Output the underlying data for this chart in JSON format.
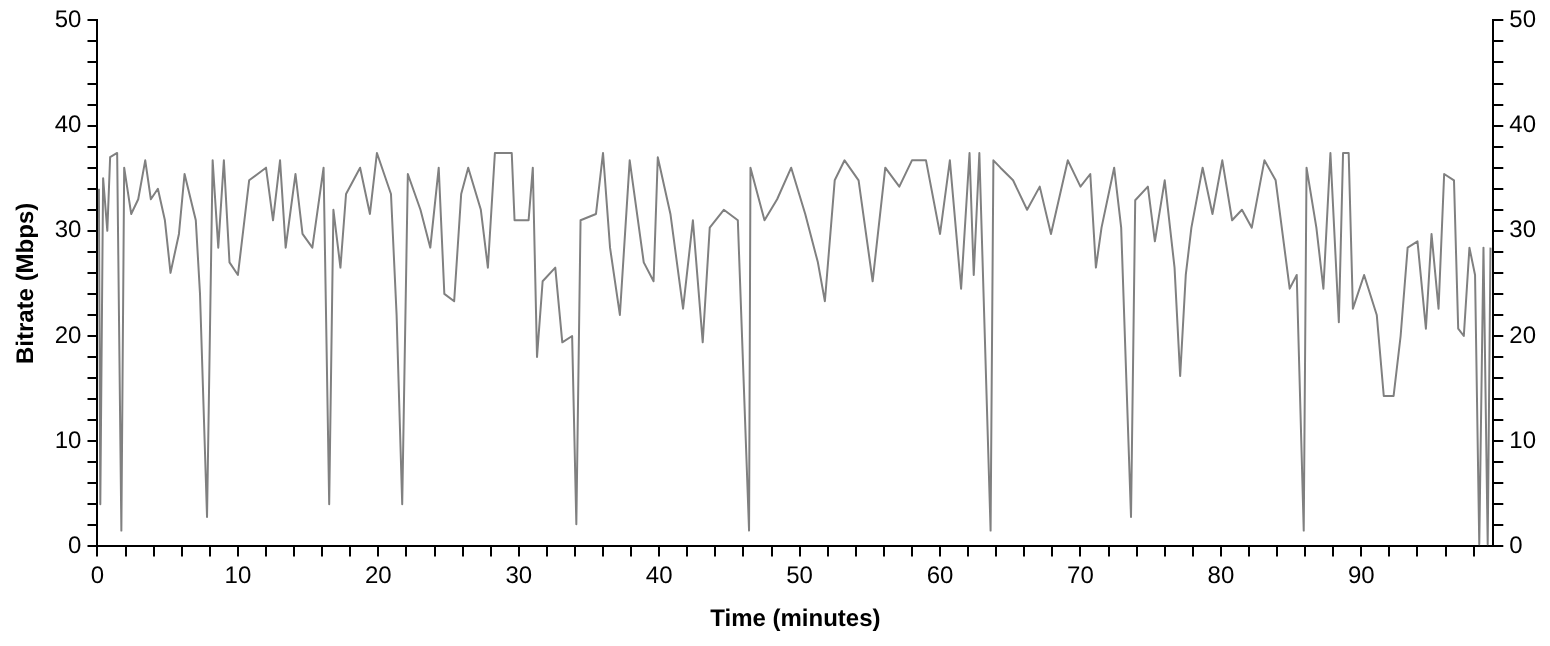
{
  "chart_data": {
    "type": "line",
    "xlabel": "Time (minutes)",
    "ylabel": "Bitrate (Mbps)",
    "xlim": [
      0,
      99.4
    ],
    "ylim": [
      0,
      50
    ],
    "y2lim": [
      0,
      50
    ],
    "xticks": [
      0,
      {
        "value": 2,
        "label": null
      },
      {
        "value": 4,
        "label": null
      },
      {
        "value": 6,
        "label": null
      },
      {
        "value": 8,
        "label": null
      },
      10,
      {
        "value": 12,
        "label": null
      },
      {
        "value": 14,
        "label": null
      },
      {
        "value": 16,
        "label": null
      },
      {
        "value": 18,
        "label": null
      },
      20,
      {
        "value": 22,
        "label": null
      },
      {
        "value": 24,
        "label": null
      },
      {
        "value": 26,
        "label": null
      },
      {
        "value": 28,
        "label": null
      },
      30,
      {
        "value": 32,
        "label": null
      },
      {
        "value": 34,
        "label": null
      },
      {
        "value": 36,
        "label": null
      },
      {
        "value": 38,
        "label": null
      },
      40,
      {
        "value": 42,
        "label": null
      },
      {
        "value": 44,
        "label": null
      },
      {
        "value": 46,
        "label": null
      },
      {
        "value": 48,
        "label": null
      },
      50,
      {
        "value": 52,
        "label": null
      },
      {
        "value": 54,
        "label": null
      },
      {
        "value": 56,
        "label": null
      },
      {
        "value": 58,
        "label": null
      },
      60,
      {
        "value": 62,
        "label": null
      },
      {
        "value": 64,
        "label": null
      },
      {
        "value": 66,
        "label": null
      },
      {
        "value": 68,
        "label": null
      },
      70,
      {
        "value": 72,
        "label": null
      },
      {
        "value": 74,
        "label": null
      },
      {
        "value": 76,
        "label": null
      },
      {
        "value": 78,
        "label": null
      },
      80,
      {
        "value": 82,
        "label": null
      },
      {
        "value": 84,
        "label": null
      },
      {
        "value": 86,
        "label": null
      },
      {
        "value": 88,
        "label": null
      },
      90,
      {
        "value": 92,
        "label": null
      },
      {
        "value": 94,
        "label": null
      },
      {
        "value": 96,
        "label": null
      },
      {
        "value": 98,
        "label": null
      }
    ],
    "yticks": [
      0,
      {
        "value": 2,
        "label": null
      },
      {
        "value": 4,
        "label": null
      },
      {
        "value": 6,
        "label": null
      },
      {
        "value": 8,
        "label": null
      },
      10,
      {
        "value": 12,
        "label": null
      },
      {
        "value": 14,
        "label": null
      },
      {
        "value": 16,
        "label": null
      },
      {
        "value": 18,
        "label": null
      },
      20,
      {
        "value": 22,
        "label": null
      },
      {
        "value": 24,
        "label": null
      },
      {
        "value": 26,
        "label": null
      },
      {
        "value": 28,
        "label": null
      },
      30,
      {
        "value": 32,
        "label": null
      },
      {
        "value": 34,
        "label": null
      },
      {
        "value": 36,
        "label": null
      },
      {
        "value": 38,
        "label": null
      },
      40,
      {
        "value": 42,
        "label": null
      },
      {
        "value": 44,
        "label": null
      },
      {
        "value": 46,
        "label": null
      },
      {
        "value": 48,
        "label": null
      },
      50
    ],
    "y2ticks": [
      0,
      {
        "value": 2,
        "label": null
      },
      {
        "value": 4,
        "label": null
      },
      {
        "value": 6,
        "label": null
      },
      {
        "value": 8,
        "label": null
      },
      10,
      {
        "value": 12,
        "label": null
      },
      {
        "value": 14,
        "label": null
      },
      {
        "value": 16,
        "label": null
      },
      {
        "value": 18,
        "label": null
      },
      20,
      {
        "value": 22,
        "label": null
      },
      {
        "value": 24,
        "label": null
      },
      {
        "value": 26,
        "label": null
      },
      {
        "value": 28,
        "label": null
      },
      30,
      {
        "value": 32,
        "label": null
      },
      {
        "value": 34,
        "label": null
      },
      {
        "value": 36,
        "label": null
      },
      {
        "value": 38,
        "label": null
      },
      40,
      {
        "value": 42,
        "label": null
      },
      {
        "value": 44,
        "label": null
      },
      {
        "value": 46,
        "label": null
      },
      {
        "value": 48,
        "label": null
      },
      50
    ],
    "grid": false,
    "legend": false,
    "marker": "none",
    "line_style": "solid",
    "series": [
      {
        "color": "#808080",
        "x": [
          0.1,
          0.2,
          0.4,
          0.7,
          0.9,
          1.4,
          1.7,
          1.9,
          2.4,
          2.9,
          3.4,
          3.8,
          4.3,
          4.8,
          5.2,
          5.8,
          6.2,
          7.0,
          7.3,
          7.8,
          8.2,
          8.6,
          9.0,
          9.4,
          10.0,
          10.8,
          12.0,
          12.5,
          13.0,
          13.4,
          14.1,
          14.6,
          15.3,
          16.1,
          16.5,
          16.8,
          17.3,
          17.7,
          18.7,
          19.4,
          19.9,
          20.9,
          21.3,
          21.7,
          22.1,
          23.0,
          23.7,
          24.3,
          24.7,
          25.4,
          25.9,
          26.4,
          27.3,
          27.8,
          28.3,
          29.5,
          29.7,
          30.7,
          31.0,
          31.3,
          31.7,
          32.6,
          33.1,
          33.8,
          34.1,
          34.4,
          35.5,
          36.0,
          36.5,
          37.2,
          37.9,
          38.9,
          39.6,
          39.9,
          40.8,
          41.7,
          42.4,
          43.1,
          43.6,
          44.6,
          45.6,
          46.4,
          46.5,
          47.5,
          48.4,
          49.4,
          50.4,
          51.3,
          51.8,
          52.5,
          53.2,
          54.2,
          55.2,
          56.1,
          57.1,
          58.0,
          59.0,
          60.0,
          60.7,
          61.5,
          62.1,
          62.4,
          62.8,
          63.6,
          63.8,
          64.3,
          65.2,
          66.2,
          67.1,
          67.9,
          69.1,
          70.0,
          70.7,
          71.1,
          71.5,
          72.4,
          72.9,
          73.6,
          73.9,
          74.8,
          75.3,
          76.0,
          76.7,
          77.1,
          77.5,
          77.9,
          78.7,
          79.4,
          80.1,
          80.8,
          81.5,
          82.2,
          83.1,
          83.9,
          84.9,
          85.4,
          85.9,
          86.1,
          86.8,
          87.3,
          87.8,
          88.4,
          88.7,
          89.1,
          89.4,
          90.2,
          91.1,
          91.6,
          92.3,
          92.8,
          93.3,
          94.0,
          94.6,
          95.0,
          95.5,
          95.9,
          96.6,
          96.9,
          97.3,
          97.7,
          98.1,
          98.4,
          98.7,
          99.0,
          99.2
        ],
        "values": [
          34,
          4,
          35,
          30,
          37,
          37.4,
          1.5,
          36,
          31.6,
          33,
          36.7,
          33,
          34,
          31,
          26,
          29.7,
          35.4,
          31,
          24,
          2.8,
          36.7,
          28.4,
          36.7,
          27,
          25.8,
          34.8,
          36,
          31,
          36.7,
          28.4,
          35.4,
          29.7,
          28.4,
          36,
          4,
          32,
          26.5,
          33.5,
          36,
          31.6,
          37.4,
          33.5,
          22,
          4,
          35.4,
          32,
          28.4,
          36,
          24,
          23.3,
          33.5,
          36,
          32,
          26.5,
          37.4,
          37.4,
          31,
          31,
          36,
          18,
          25.2,
          26.5,
          19.4,
          20,
          2.1,
          31,
          31.6,
          37.4,
          28.4,
          22,
          36.7,
          27,
          25.2,
          37,
          31.6,
          22.6,
          31,
          19.4,
          30.3,
          32,
          31,
          1.5,
          36,
          31,
          33,
          36,
          31.6,
          27,
          23.3,
          34.8,
          36.7,
          34.8,
          25.2,
          36,
          34.2,
          36.7,
          36.7,
          29.7,
          36.7,
          24.5,
          37.4,
          25.8,
          37.4,
          1.5,
          36.7,
          36,
          34.8,
          32,
          34.2,
          29.7,
          36.7,
          34.2,
          35.4,
          26.5,
          30.3,
          36,
          30.3,
          2.8,
          32.9,
          34.2,
          29,
          34.8,
          26.5,
          16.2,
          25.8,
          30.3,
          36,
          31.6,
          36.7,
          31,
          32,
          30.3,
          36.7,
          34.8,
          24.5,
          25.8,
          1.5,
          36,
          30.3,
          24.5,
          37.4,
          21.3,
          37.4,
          37.4,
          22.6,
          25.8,
          22,
          14.3,
          14.3,
          20,
          28.4,
          29,
          20.7,
          29.7,
          22.6,
          35.4,
          34.8,
          20.7,
          20,
          28.4,
          25.8,
          0.2,
          28.4,
          0.2,
          28.4
        ]
      }
    ]
  }
}
